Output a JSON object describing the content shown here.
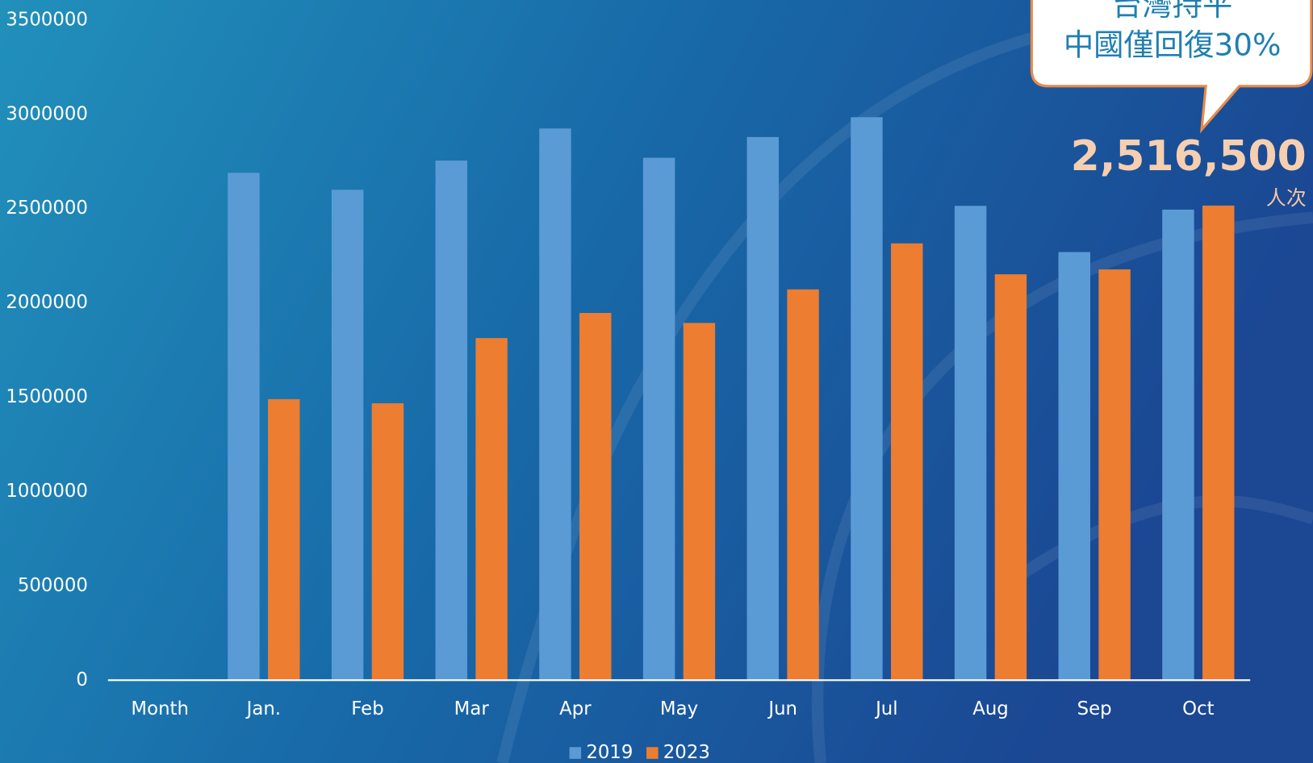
{
  "chart_data": {
    "type": "bar",
    "categories": [
      "Month",
      "Jan.",
      "Feb",
      "Mar",
      "Apr",
      "May",
      "Jun",
      "Jul",
      "Aug",
      "Sep",
      "Oct"
    ],
    "series": [
      {
        "name": "2019",
        "color": "#5b9bd5",
        "values": [
          null,
          2690000,
          2600000,
          2755000,
          2925000,
          2770000,
          2880000,
          2985000,
          2515000,
          2270000,
          2495000
        ]
      },
      {
        "name": "2023",
        "color": "#ed7d31",
        "values": [
          null,
          1490000,
          1468000,
          1814000,
          1947000,
          1894000,
          2072000,
          2316000,
          2152000,
          2178000,
          2516500
        ],
        "value_labels": [
          null,
          null,
          null,
          null,
          null,
          null,
          null,
          null,
          null,
          null,
          "2,516,500"
        ]
      }
    ],
    "ylim": [
      0,
      3500000
    ],
    "yticks": [
      0,
      500000,
      1000000,
      1500000,
      2000000,
      2500000,
      3000000,
      3500000
    ],
    "annotations": [
      "台灣持平",
      "中國僅回復30%",
      "人次"
    ],
    "legend": "bottom"
  }
}
